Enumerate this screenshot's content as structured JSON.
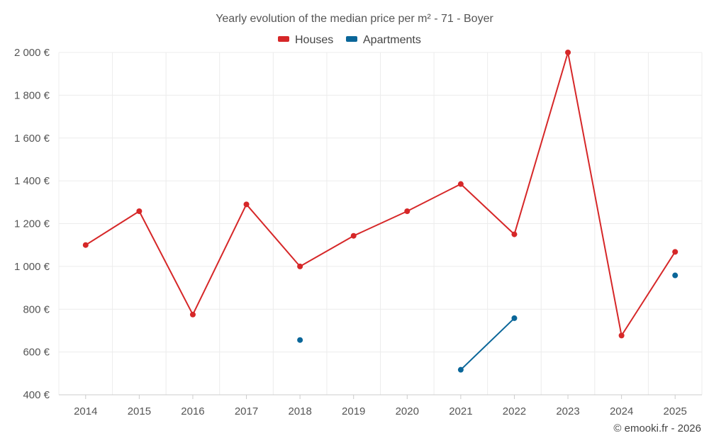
{
  "chart_data": {
    "type": "line",
    "title": "Yearly evolution of the median price per m² - 71 - Boyer",
    "categories": [
      "2014",
      "2015",
      "2016",
      "2017",
      "2018",
      "2019",
      "2020",
      "2021",
      "2022",
      "2023",
      "2024",
      "2025"
    ],
    "y_ticks": [
      400,
      600,
      800,
      1000,
      1200,
      1400,
      1600,
      1800,
      2000
    ],
    "y_tick_labels": [
      "400 €",
      "600 €",
      "800 €",
      "1 000 €",
      "1 200 €",
      "1 400 €",
      "1 600 €",
      "1 800 €",
      "2 000 €"
    ],
    "ylim": [
      400,
      2000
    ],
    "grid": true,
    "legend_position": "top-center",
    "series": [
      {
        "name": "Houses",
        "color": "#d62728",
        "values": [
          1100,
          1258,
          775,
          1290,
          1000,
          1143,
          1258,
          1385,
          1150,
          2000,
          677,
          1068
        ]
      },
      {
        "name": "Apartments",
        "color": "#0a6699",
        "values": [
          null,
          null,
          null,
          null,
          656,
          null,
          null,
          517,
          758,
          null,
          null,
          958
        ]
      }
    ],
    "credit": "© emooki.fr - 2026"
  }
}
